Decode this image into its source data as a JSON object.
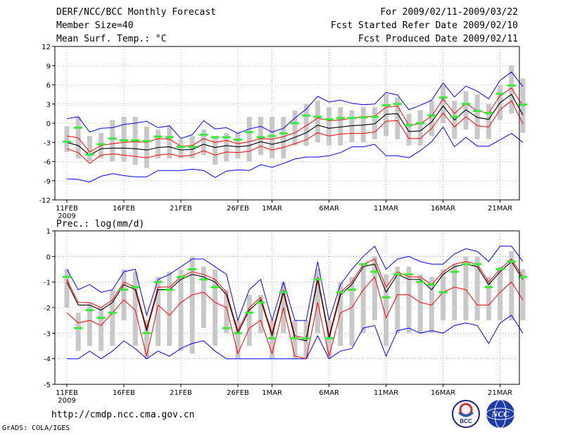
{
  "header": {
    "title": "DERF/NCC/BCC Monthly Forecast",
    "member": "Member Size=40",
    "variable1": "Mean Surf. Temp.: °C",
    "period": "For 2009/02/11-2009/03/22",
    "started": "Fcst Started Refer Date 2009/02/10",
    "produced": "Fcst Produced Date 2009/02/11"
  },
  "footer": {
    "url": "http://cmdp.ncc.cma.gov.cn",
    "credit": "GrADS: COLA/IGES",
    "logo_bcc": "BCC",
    "logo_ncc": "NCC"
  },
  "colors": {
    "envelope": "#0000ff",
    "spread": "#ff0000",
    "mean": "#000000",
    "median": "#33ee33",
    "box": "#c8c8c8"
  },
  "chart_data": [
    {
      "type": "line",
      "title": "Mean Surf. Temp.: °C",
      "ylim": [
        -12,
        12
      ],
      "yticks": [
        -12,
        -9,
        -6,
        -3,
        0,
        3,
        6,
        9,
        12
      ],
      "x_ticks": [
        {
          "day": 0,
          "label": "11FEB",
          "sub": "2009"
        },
        {
          "day": 5,
          "label": "16FEB",
          "sub": ""
        },
        {
          "day": 10,
          "label": "21FEB",
          "sub": ""
        },
        {
          "day": 15,
          "label": "26FEB",
          "sub": ""
        },
        {
          "day": 18,
          "label": "1MAR",
          "sub": ""
        },
        {
          "day": 23,
          "label": "6MAR",
          "sub": ""
        },
        {
          "day": 28,
          "label": "11MAR",
          "sub": ""
        },
        {
          "day": 33,
          "label": "16MAR",
          "sub": ""
        },
        {
          "day": 38,
          "label": "21MAR",
          "sub": ""
        }
      ],
      "series": [
        {
          "name": "max",
          "values": [
            0.7,
            1.0,
            -1.4,
            -0.8,
            -0.7,
            -0.2,
            0.0,
            0.3,
            -0.7,
            -0.4,
            -2.4,
            -1.8,
            0.4,
            -0.9,
            -0.7,
            -1.6,
            -0.9,
            -0.5,
            -1.4,
            -0.8,
            0.8,
            2.2,
            4.2,
            3.3,
            3.6,
            3.1,
            2.9,
            3.0,
            4.8,
            4.4,
            2.1,
            2.8,
            3.6,
            6.3,
            4.1,
            5.8,
            5.0,
            3.8,
            6.7,
            8.0,
            5.7
          ]
        },
        {
          "name": "upper",
          "values": [
            -2.0,
            -2.3,
            -4.5,
            -3.5,
            -3.2,
            -3.0,
            -2.9,
            -3.0,
            -2.4,
            -2.5,
            -3.6,
            -3.5,
            -2.4,
            -3.0,
            -2.7,
            -3.2,
            -2.9,
            -2.4,
            -2.5,
            -2.1,
            -1.5,
            -0.4,
            0.8,
            0.4,
            0.5,
            0.8,
            1.0,
            1.1,
            2.5,
            2.7,
            -0.3,
            -0.1,
            1.1,
            3.8,
            1.5,
            3.1,
            1.9,
            1.6,
            4.3,
            5.5,
            2.7
          ]
        },
        {
          "name": "mean",
          "values": [
            -3.0,
            -3.5,
            -5.0,
            -4.0,
            -3.9,
            -3.9,
            -4.0,
            -4.2,
            -3.8,
            -3.7,
            -4.2,
            -4.1,
            -3.3,
            -3.8,
            -3.5,
            -3.7,
            -3.5,
            -2.9,
            -3.3,
            -2.9,
            -2.2,
            -1.5,
            -0.3,
            -0.8,
            -0.6,
            -0.4,
            -0.3,
            -0.1,
            1.4,
            1.5,
            -1.3,
            -1.2,
            0.2,
            2.7,
            0.5,
            2.1,
            0.9,
            0.6,
            3.2,
            4.5,
            1.3
          ]
        },
        {
          "name": "lower",
          "values": [
            -4.0,
            -4.6,
            -6.3,
            -5.0,
            -4.8,
            -5.0,
            -5.2,
            -5.4,
            -5.0,
            -4.8,
            -5.2,
            -5.0,
            -4.3,
            -5.0,
            -4.5,
            -4.6,
            -4.4,
            -3.6,
            -4.2,
            -3.8,
            -3.2,
            -2.6,
            -1.5,
            -2.0,
            -1.7,
            -1.6,
            -1.6,
            -1.4,
            0.3,
            0.4,
            -2.4,
            -2.4,
            -0.8,
            1.6,
            -0.6,
            1.0,
            -0.4,
            -0.6,
            2.1,
            3.5,
            -0.1
          ]
        },
        {
          "name": "min",
          "values": [
            -8.7,
            -8.8,
            -9.2,
            -8.3,
            -7.9,
            -8.2,
            -8.4,
            -8.4,
            -7.4,
            -7.4,
            -7.4,
            -7.2,
            -7.4,
            -8.5,
            -7.5,
            -7.3,
            -7.4,
            -6.5,
            -6.9,
            -6.3,
            -5.6,
            -5.3,
            -5.3,
            -5.1,
            -4.6,
            -3.7,
            -3.7,
            -3.3,
            -5.1,
            -5.1,
            -5.4,
            -4.3,
            -2.9,
            -0.6,
            -3.7,
            -2.2,
            -3.6,
            -3.6,
            -2.6,
            -1.6,
            -3.0
          ]
        },
        {
          "name": "box_top",
          "values": [
            -0.5,
            1.0,
            -2.0,
            -1.5,
            0.5,
            1.0,
            1.0,
            -0.5,
            -1.0,
            -0.5,
            -2.5,
            -2.0,
            -1.0,
            -2.0,
            -1.5,
            -1.5,
            1.0,
            1.0,
            1.0,
            1.0,
            2.0,
            3.0,
            3.5,
            2.5,
            2.5,
            2.0,
            2.5,
            2.5,
            4.5,
            4.0,
            1.5,
            2.0,
            3.5,
            6.0,
            3.5,
            5.0,
            4.5,
            3.0,
            6.0,
            9.0,
            7.0
          ]
        },
        {
          "name": "box_bottom",
          "values": [
            -4.5,
            -5.5,
            -6.0,
            -5.5,
            -6.0,
            -6.0,
            -6.5,
            -7.0,
            -5.5,
            -5.5,
            -5.5,
            -5.5,
            -5.0,
            -6.5,
            -6.0,
            -5.5,
            -6.0,
            -5.0,
            -5.5,
            -5.5,
            -3.5,
            -3.5,
            -3.0,
            -3.5,
            -3.5,
            -3.0,
            -3.0,
            -2.5,
            -2.0,
            -2.5,
            -3.5,
            -3.5,
            -2.0,
            0.0,
            -2.5,
            -1.0,
            -2.5,
            -2.5,
            0.5,
            1.5,
            -1.5
          ]
        },
        {
          "name": "median",
          "values": [
            -2.9,
            -0.7,
            -4.9,
            -3.3,
            -2.4,
            -2.7,
            -2.7,
            -2.8,
            -2.1,
            -2.2,
            -3.7,
            -3.7,
            -1.8,
            -2.2,
            -2.2,
            -2.6,
            -1.4,
            -2.2,
            -2.0,
            -1.6,
            0.0,
            1.2,
            1.0,
            0.6,
            0.8,
            0.8,
            0.9,
            1.0,
            2.8,
            3.0,
            -0.3,
            0.0,
            1.2,
            4.0,
            1.0,
            3.0,
            1.9,
            1.6,
            4.6,
            5.9,
            2.9
          ]
        }
      ]
    },
    {
      "type": "line",
      "title": "Prec.: log(mm/d)",
      "ylim": [
        -5,
        1
      ],
      "yticks": [
        -5,
        -4,
        -3,
        -2,
        -1,
        0,
        1
      ],
      "x_ticks": [
        {
          "day": 0,
          "label": "11FEB",
          "sub": "2009"
        },
        {
          "day": 5,
          "label": "16FEB",
          "sub": ""
        },
        {
          "day": 10,
          "label": "21FEB",
          "sub": ""
        },
        {
          "day": 15,
          "label": "26FEB",
          "sub": ""
        },
        {
          "day": 18,
          "label": "1MAR",
          "sub": ""
        },
        {
          "day": 23,
          "label": "6MAR",
          "sub": ""
        },
        {
          "day": 28,
          "label": "11MAR",
          "sub": ""
        },
        {
          "day": 33,
          "label": "16MAR",
          "sub": ""
        },
        {
          "day": 38,
          "label": "21MAR",
          "sub": ""
        }
      ],
      "series": [
        {
          "name": "max",
          "values": [
            -0.5,
            -1.3,
            -1.1,
            -1.4,
            -1.3,
            -0.6,
            -0.5,
            -2.3,
            -0.9,
            -0.7,
            -0.4,
            -0.1,
            -0.1,
            -0.4,
            -0.7,
            -2.5,
            -1.3,
            -0.9,
            -2.5,
            -1.0,
            -2.5,
            -2.5,
            -0.2,
            -2.5,
            -1.1,
            -0.5,
            0.0,
            0.4,
            -0.5,
            -0.1,
            0.0,
            -0.2,
            -0.3,
            -0.3,
            0.1,
            0.3,
            0.2,
            -0.2,
            0.4,
            0.4,
            -0.2
          ]
        },
        {
          "name": "upper",
          "values": [
            -0.9,
            -1.8,
            -1.8,
            -2.0,
            -1.7,
            -1.0,
            -1.2,
            -2.8,
            -1.2,
            -1.2,
            -0.8,
            -0.6,
            -0.7,
            -0.9,
            -1.4,
            -2.9,
            -2.0,
            -1.6,
            -3.0,
            -1.3,
            -3.1,
            -3.2,
            -0.8,
            -3.1,
            -1.4,
            -1.0,
            -0.3,
            -0.1,
            -1.2,
            -0.6,
            -0.8,
            -0.8,
            -1.1,
            -0.6,
            -0.3,
            -0.2,
            -0.3,
            -1.0,
            -0.5,
            -0.1,
            -0.8
          ]
        },
        {
          "name": "mean",
          "values": [
            -1.0,
            -1.9,
            -1.9,
            -2.1,
            -1.8,
            -1.1,
            -1.3,
            -2.9,
            -1.3,
            -1.3,
            -0.9,
            -0.7,
            -0.8,
            -1.0,
            -1.5,
            -3.0,
            -2.1,
            -1.7,
            -3.1,
            -1.4,
            -3.2,
            -3.3,
            -0.9,
            -3.2,
            -1.5,
            -1.1,
            -0.4,
            -0.3,
            -1.4,
            -0.7,
            -0.9,
            -0.9,
            -1.3,
            -0.7,
            -0.4,
            -0.3,
            -0.4,
            -1.1,
            -0.6,
            -0.2,
            -0.9
          ]
        },
        {
          "name": "lower",
          "values": [
            -2.2,
            -2.6,
            -2.5,
            -2.7,
            -2.2,
            -1.7,
            -2.1,
            -3.9,
            -1.9,
            -2.3,
            -1.8,
            -1.5,
            -1.4,
            -1.8,
            -2.0,
            -3.8,
            -2.8,
            -2.5,
            -3.8,
            -2.0,
            -3.9,
            -4.0,
            -1.8,
            -3.9,
            -2.2,
            -2.0,
            -1.3,
            -0.8,
            -2.4,
            -1.5,
            -1.5,
            -1.8,
            -1.9,
            -1.4,
            -1.2,
            -1.3,
            -1.9,
            -1.9,
            -1.4,
            -1.0,
            -1.7
          ]
        },
        {
          "name": "min",
          "values": [
            -4.0,
            -4.0,
            -3.7,
            -4.0,
            -3.7,
            -3.3,
            -3.6,
            -4.0,
            -3.7,
            -3.9,
            -3.6,
            -3.4,
            -3.3,
            -3.7,
            -4.0,
            -4.0,
            -4.0,
            -4.0,
            -4.0,
            -4.0,
            -4.0,
            -4.0,
            -3.1,
            -4.0,
            -3.7,
            -3.6,
            -2.8,
            -2.7,
            -3.9,
            -2.9,
            -2.8,
            -3.0,
            -2.9,
            -3.0,
            -2.7,
            -2.6,
            -2.7,
            -3.4,
            -2.6,
            -2.3,
            -3.0
          ]
        },
        {
          "name": "box_top",
          "values": [
            -0.5,
            -2.2,
            -1.8,
            -2.0,
            -1.3,
            -0.5,
            -0.6,
            -2.5,
            -0.8,
            -0.6,
            -0.5,
            0.0,
            -0.4,
            -0.5,
            -1.3,
            -2.5,
            -1.5,
            -1.5,
            -2.5,
            -1.0,
            -2.5,
            -2.5,
            -0.5,
            -2.5,
            -1.0,
            -0.8,
            -0.3,
            0.0,
            -0.7,
            -0.4,
            -0.4,
            -0.7,
            -0.8,
            -0.5,
            -0.3,
            0.0,
            0.0,
            -0.8,
            -0.4,
            0.2,
            -0.5
          ]
        },
        {
          "name": "box_bottom",
          "values": [
            -2.0,
            -3.7,
            -3.5,
            -3.7,
            -3.5,
            -2.5,
            -3.5,
            -4.0,
            -3.5,
            -3.5,
            -3.7,
            -3.8,
            -2.8,
            -3.5,
            -3.0,
            -4.0,
            -3.5,
            -3.0,
            -4.0,
            -3.0,
            -4.0,
            -4.0,
            -3.0,
            -4.0,
            -3.5,
            -3.5,
            -3.0,
            -2.5,
            -3.5,
            -3.0,
            -3.0,
            -3.0,
            -3.0,
            -2.5,
            -2.5,
            -2.5,
            -2.5,
            -2.5,
            -2.5,
            -2.5,
            -2.5
          ]
        },
        {
          "name": "median",
          "values": [
            -0.8,
            -2.8,
            -2.1,
            -2.4,
            -2.2,
            -1.3,
            -1.2,
            -3.0,
            -1.0,
            -1.3,
            -0.8,
            -0.5,
            -0.9,
            -1.2,
            -2.8,
            -3.0,
            -2.2,
            -1.8,
            -3.2,
            -1.4,
            -3.2,
            -3.2,
            -0.9,
            -3.2,
            -1.4,
            -1.3,
            -0.3,
            -0.6,
            -1.6,
            -0.7,
            -0.7,
            -1.0,
            -1.1,
            -1.4,
            -0.6,
            -0.3,
            -0.3,
            -1.2,
            -0.5,
            -0.2,
            -0.8
          ]
        }
      ]
    }
  ]
}
